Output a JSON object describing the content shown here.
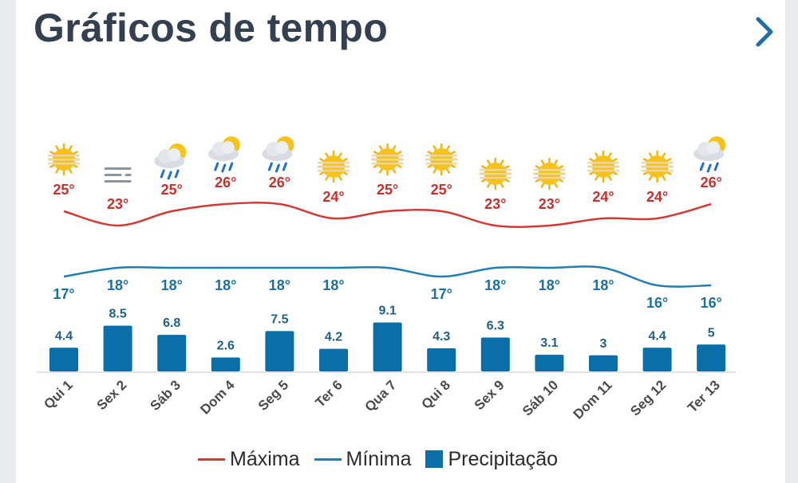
{
  "header": {
    "title": "Gráficos de tempo",
    "next_icon": "chevron-right-icon"
  },
  "colors": {
    "max": "#d23a33",
    "min": "#1f7fb5",
    "precip": "#0a6ea8",
    "label_max": "#c9302c",
    "label_min": "#1a6fa3",
    "label_precip": "#1f5f8a"
  },
  "chart_data": {
    "type": "line+bar",
    "days": [
      "Qui 1",
      "Sex 2",
      "Sáb 3",
      "Dom 4",
      "Seg 5",
      "Ter 6",
      "Qua 7",
      "Qui 8",
      "Sex 9",
      "Sáb 10",
      "Dom 11",
      "Seg 12",
      "Ter 13"
    ],
    "icons": [
      "sun-hazy-icon",
      "fog-icon",
      "rain-sun-icon",
      "rain-sun-icon",
      "rain-sun-icon",
      "sun-hazy-icon",
      "sun-hazy-icon",
      "sun-hazy-icon",
      "sun-hazy-icon",
      "sun-hazy-icon",
      "sun-hazy-icon",
      "sun-hazy-icon",
      "rain-sun-icon"
    ],
    "max_labels": [
      "25°",
      "23°",
      "25°",
      "26°",
      "26°",
      "24°",
      "25°",
      "25°",
      "23°",
      "23°",
      "24°",
      "24°",
      "26°"
    ],
    "min_labels": [
      "17°",
      "18°",
      "18°",
      "18°",
      "18°",
      "18°",
      "",
      "17°",
      "18°",
      "18°",
      "18°",
      "16°",
      "16°"
    ],
    "series": [
      {
        "name": "Máxima",
        "values": [
          25,
          23,
          25,
          26,
          26,
          24,
          25,
          25,
          23,
          23,
          24,
          24,
          26
        ]
      },
      {
        "name": "Mínima",
        "values": [
          17,
          18,
          18,
          18,
          18,
          18,
          18,
          17,
          18,
          18,
          18,
          16,
          16
        ]
      },
      {
        "name": "Precipitação",
        "values": [
          4.4,
          8.5,
          6.8,
          2.6,
          7.5,
          4.2,
          9.1,
          4.3,
          6.3,
          3.1,
          3,
          4.4,
          5
        ]
      }
    ],
    "precip_labels": [
      "4.4",
      "8.5",
      "6.8",
      "2.6",
      "7.5",
      "4.2",
      "9.1",
      "4.3",
      "6.3",
      "3.1",
      "3",
      "4.4",
      "5"
    ]
  },
  "legend": {
    "max": "Máxima",
    "min": "Mínima",
    "precip": "Precipitação"
  }
}
